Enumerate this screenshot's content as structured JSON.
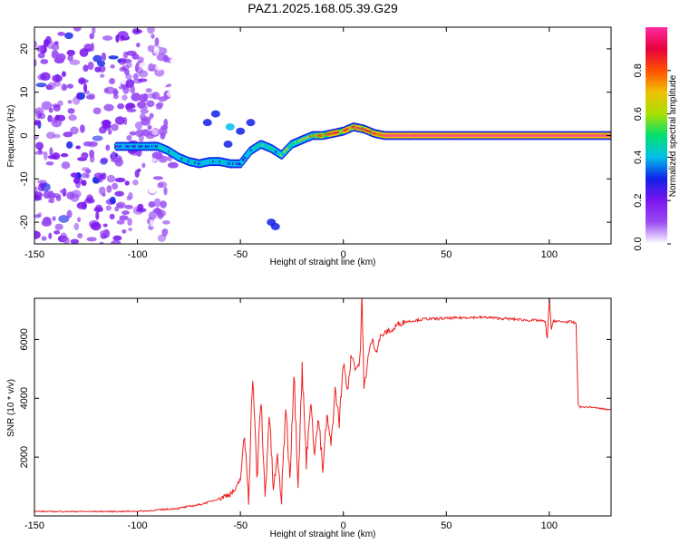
{
  "colors": {
    "snr_line": "#ee2222",
    "colormap": [
      "#ffffff",
      "#9a4cf2",
      "#7a16ee",
      "#1020e8",
      "#00bfe8",
      "#00e070",
      "#a8e000",
      "#f0c000",
      "#ff5000",
      "#e8003c",
      "#ff2aa0"
    ]
  },
  "chart_data": [
    {
      "type": "heatmap",
      "title": "PAZ1.2025.168.05.39.G29",
      "xlabel": "Height of straight line (km)",
      "ylabel": "Frequency (Hz)",
      "xlim": [
        -150,
        130
      ],
      "ylim": [
        -25,
        25
      ],
      "xticks": [
        -150,
        -100,
        -50,
        0,
        50,
        100
      ],
      "yticks": [
        -20,
        -10,
        0,
        10,
        20
      ],
      "colorbar": {
        "label": "Normalized spectral amplitude",
        "range": [
          0,
          1
        ],
        "ticks": [
          0.0,
          0.2,
          0.4,
          0.6,
          0.8
        ],
        "tick_labels": [
          "0.0",
          "0.2",
          "0.4",
          "0.6",
          "0.8"
        ]
      },
      "ridge": {
        "x": [
          -110,
          -100,
          -90,
          -85,
          -80,
          -75,
          -70,
          -65,
          -60,
          -55,
          -50,
          -45,
          -40,
          -35,
          -30,
          -25,
          -20,
          -15,
          -10,
          -5,
          0,
          5,
          10,
          15,
          20,
          25,
          50,
          100,
          130
        ],
        "frequency": [
          -2.5,
          -2.5,
          -2.5,
          -3.5,
          -5,
          -6,
          -6.5,
          -6,
          -6,
          -6.5,
          -6.5,
          -3.5,
          -2,
          -3,
          -4.5,
          -2,
          -1,
          0,
          0,
          0.5,
          1,
          2,
          1.5,
          0.5,
          0,
          0,
          0,
          0,
          0
        ],
        "amplitude": [
          0.3,
          0.35,
          0.4,
          0.4,
          0.45,
          0.45,
          0.35,
          0.35,
          0.4,
          0.35,
          0.3,
          0.4,
          0.45,
          0.4,
          0.5,
          0.55,
          0.6,
          0.7,
          0.8,
          0.8,
          0.85,
          0.85,
          0.9,
          0.9,
          0.95,
          0.95,
          0.95,
          0.95,
          0.95
        ]
      },
      "secondary_blobs": [
        {
          "x": -66,
          "frequency": 3,
          "amplitude": 0.25
        },
        {
          "x": -62,
          "frequency": 5,
          "amplitude": 0.3
        },
        {
          "x": -55,
          "frequency": 2,
          "amplitude": 0.35
        },
        {
          "x": -50,
          "frequency": 1,
          "amplitude": 0.3
        },
        {
          "x": -45,
          "frequency": 3,
          "amplitude": 0.25
        },
        {
          "x": -56,
          "frequency": -2,
          "amplitude": 0.3
        },
        {
          "x": -35,
          "frequency": -20,
          "amplitude": 0.3
        },
        {
          "x": -33,
          "frequency": -21,
          "amplitude": 0.3
        }
      ]
    },
    {
      "type": "line",
      "xlabel": "Height of straight line (km)",
      "ylabel": "SNR (10 * v/v)",
      "xlim": [
        -150,
        130
      ],
      "ylim": [
        0,
        7400
      ],
      "xticks": [
        -150,
        -100,
        -50,
        0,
        50,
        100
      ],
      "yticks": [
        2000,
        4000,
        6000
      ],
      "series": [
        {
          "x": [
            -150,
            -140,
            -130,
            -120,
            -110,
            -100,
            -95,
            -90,
            -85,
            -80,
            -75,
            -70,
            -65,
            -60,
            -55,
            -52,
            -50,
            -48,
            -46,
            -44,
            -42,
            -40,
            -38,
            -36,
            -34,
            -32,
            -30,
            -28,
            -26,
            -24,
            -22,
            -20,
            -18,
            -16,
            -14,
            -12,
            -10,
            -8,
            -6,
            -4,
            -2,
            0,
            2,
            4,
            6,
            8,
            9,
            10,
            12,
            14,
            16,
            18,
            20,
            22,
            24,
            26,
            28,
            30,
            35,
            40,
            45,
            50,
            55,
            60,
            65,
            70,
            75,
            80,
            85,
            90,
            95,
            98,
            99,
            100,
            101,
            102,
            105,
            110,
            113,
            114,
            115,
            120,
            125,
            130
          ],
          "y": [
            150,
            150,
            150,
            150,
            150,
            160,
            170,
            200,
            230,
            260,
            320,
            380,
            480,
            600,
            750,
            900,
            1300,
            2700,
            700,
            4900,
            1200,
            4000,
            600,
            3500,
            900,
            2000,
            500,
            3800,
            1300,
            4900,
            1200,
            5000,
            1800,
            3900,
            2200,
            3300,
            1500,
            3400,
            2400,
            4300,
            3200,
            5200,
            4300,
            5500,
            5000,
            5200,
            7400,
            4300,
            5400,
            6000,
            5600,
            6100,
            6200,
            6300,
            6300,
            6500,
            6550,
            6600,
            6650,
            6700,
            6700,
            6720,
            6730,
            6750,
            6750,
            6750,
            6720,
            6700,
            6680,
            6650,
            6650,
            6600,
            6000,
            7400,
            6300,
            6650,
            6600,
            6600,
            6550,
            3800,
            3700,
            3700,
            3650,
            3600
          ]
        }
      ]
    }
  ]
}
